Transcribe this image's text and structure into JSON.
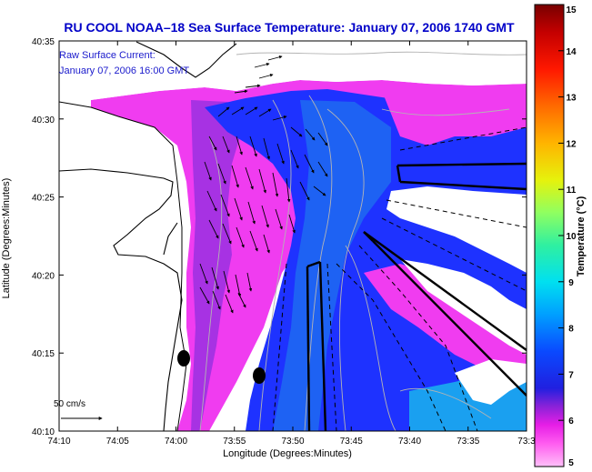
{
  "title": "RU COOL  NOAA–18  Sea Surface Temperature:  January 07, 2006 1740 GMT",
  "current_legend": {
    "line1": "Raw Surface Current:",
    "line2": "January 07, 2006 16:00 GMT"
  },
  "scale_label": "50 cm/s",
  "axes": {
    "xlabel": "Longitude (Degrees:Minutes)",
    "ylabel": "Latitude (Degrees:Minutes)",
    "x_ticks": [
      "74:10",
      "74:05",
      "74:00",
      "73:55",
      "73:50",
      "73:45",
      "73:40",
      "73:35",
      "73:3"
    ],
    "y_ticks": [
      "40:35",
      "40:30",
      "40:25",
      "40:20",
      "40:15",
      "40:10"
    ]
  },
  "colorbar": {
    "label": "Temperature (°C)",
    "min": 5,
    "max": 15,
    "ticks": [
      "15",
      "14",
      "13",
      "12",
      "11",
      "10",
      "9",
      "8",
      "7",
      "6",
      "5"
    ],
    "colors": [
      "#800000",
      "#d40000",
      "#ff2a00",
      "#ff7a00",
      "#ffc400",
      "#e6f20c",
      "#8cff6e",
      "#2ef5c8",
      "#00b4ff",
      "#0a5aff",
      "#1414d8",
      "#6a1fd0",
      "#e61ee6",
      "#ff5cf0",
      "#ffaaf5"
    ]
  },
  "colors": {
    "sst_warm": "#f03cf0",
    "sst_mid": "#a030e0",
    "sst_cool": "#1e32ff",
    "sst_coolest": "#1e6ef0",
    "land": "#ffffff",
    "title": "#0000c8"
  }
}
